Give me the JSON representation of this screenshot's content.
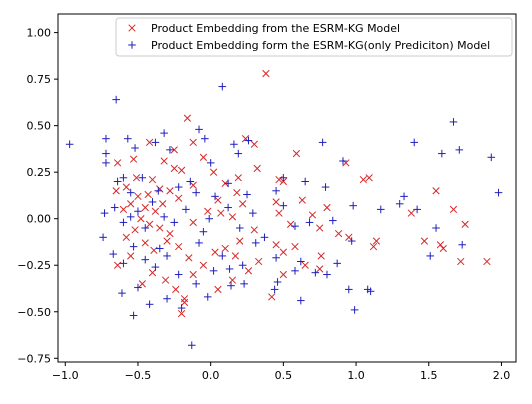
{
  "chart_data": {
    "type": "scatter",
    "xlim": [
      -1.05,
      2.1
    ],
    "ylim": [
      -0.77,
      1.1
    ],
    "xticks": [
      {
        "v": -1.0,
        "label": "−1.0"
      },
      {
        "v": -0.5,
        "label": "−0.5"
      },
      {
        "v": 0.0,
        "label": "0.0"
      },
      {
        "v": 0.5,
        "label": "0.5"
      },
      {
        "v": 1.0,
        "label": "1.0"
      },
      {
        "v": 1.5,
        "label": "1.5"
      },
      {
        "v": 2.0,
        "label": "2.0"
      }
    ],
    "yticks": [
      {
        "v": -0.75,
        "label": "−0.75"
      },
      {
        "v": -0.5,
        "label": "−0.50"
      },
      {
        "v": -0.25,
        "label": "−0.25"
      },
      {
        "v": 0.0,
        "label": "0.00"
      },
      {
        "v": 0.25,
        "label": "0.25"
      },
      {
        "v": 0.5,
        "label": "0.50"
      },
      {
        "v": 0.75,
        "label": "0.75"
      },
      {
        "v": 1.0,
        "label": "1.00"
      }
    ],
    "grid": false,
    "legend_position": "top-right",
    "series": [
      {
        "name": "Product Embedding from the ESRM-KG Model",
        "marker": "x",
        "color": "#d62728",
        "points": [
          [
            0.38,
            0.78
          ],
          [
            -0.16,
            0.54
          ],
          [
            0.24,
            0.43
          ],
          [
            0.3,
            0.4
          ],
          [
            -0.42,
            0.41
          ],
          [
            -0.12,
            0.41
          ],
          [
            -0.25,
            0.37
          ],
          [
            -0.05,
            0.33
          ],
          [
            -0.53,
            0.32
          ],
          [
            -0.32,
            0.31
          ],
          [
            -0.64,
            0.3
          ],
          [
            -0.25,
            0.27
          ],
          [
            -0.2,
            0.26
          ],
          [
            0.02,
            0.25
          ],
          [
            0.19,
            0.22
          ],
          [
            0.32,
            0.27
          ],
          [
            0.59,
            0.35
          ],
          [
            0.93,
            0.3
          ],
          [
            -0.51,
            0.22
          ],
          [
            -0.4,
            0.21
          ],
          [
            -0.35,
            0.16
          ],
          [
            -0.12,
            0.18
          ],
          [
            0.1,
            0.19
          ],
          [
            -0.58,
            0.17
          ],
          [
            -0.65,
            0.15
          ],
          [
            -0.43,
            0.13
          ],
          [
            -0.28,
            0.15
          ],
          [
            -0.22,
            0.11
          ],
          [
            -0.33,
            0.08
          ],
          [
            -0.45,
            0.06
          ],
          [
            -0.55,
            0.08
          ],
          [
            -0.6,
            0.05
          ],
          [
            -0.5,
            0.12
          ],
          [
            -0.38,
            0.04
          ],
          [
            0.05,
            0.1
          ],
          [
            0.18,
            0.14
          ],
          [
            0.47,
            0.21
          ],
          [
            0.5,
            0.2
          ],
          [
            1.05,
            0.21
          ],
          [
            1.09,
            0.22
          ],
          [
            1.55,
            0.15
          ],
          [
            1.67,
            0.05
          ],
          [
            1.75,
            -0.03
          ],
          [
            -0.48,
            0.0
          ],
          [
            -0.42,
            -0.03
          ],
          [
            -0.52,
            -0.06
          ],
          [
            -0.58,
            -0.1
          ],
          [
            -0.35,
            -0.05
          ],
          [
            -0.28,
            -0.08
          ],
          [
            -0.12,
            -0.02
          ],
          [
            -0.02,
            0.04
          ],
          [
            0.07,
            0.03
          ],
          [
            0.15,
            0.01
          ],
          [
            0.22,
            0.08
          ],
          [
            0.3,
            -0.06
          ],
          [
            0.45,
            0.09
          ],
          [
            0.47,
            0.03
          ],
          [
            0.55,
            -0.03
          ],
          [
            0.63,
            0.1
          ],
          [
            0.7,
            0.02
          ],
          [
            0.75,
            -0.05
          ],
          [
            0.8,
            0.06
          ],
          [
            0.88,
            -0.08
          ],
          [
            0.95,
            -0.1
          ],
          [
            1.12,
            -0.15
          ],
          [
            1.14,
            -0.12
          ],
          [
            1.38,
            0.03
          ],
          [
            1.47,
            -0.12
          ],
          [
            1.58,
            -0.14
          ],
          [
            1.6,
            -0.16
          ],
          [
            1.72,
            -0.23
          ],
          [
            1.9,
            -0.23
          ],
          [
            -0.64,
            -0.25
          ],
          [
            -0.55,
            -0.2
          ],
          [
            -0.45,
            -0.13
          ],
          [
            -0.39,
            -0.17
          ],
          [
            -0.3,
            -0.12
          ],
          [
            -0.22,
            -0.15
          ],
          [
            -0.15,
            -0.21
          ],
          [
            -0.05,
            -0.25
          ],
          [
            0.03,
            -0.18
          ],
          [
            0.1,
            -0.16
          ],
          [
            0.17,
            -0.2
          ],
          [
            0.2,
            -0.12
          ],
          [
            0.26,
            -0.28
          ],
          [
            0.33,
            -0.23
          ],
          [
            0.45,
            -0.14
          ],
          [
            0.5,
            -0.18
          ],
          [
            0.58,
            -0.15
          ],
          [
            0.65,
            -0.25
          ],
          [
            0.75,
            -0.27
          ],
          [
            0.76,
            -0.2
          ],
          [
            -0.4,
            -0.29
          ],
          [
            -0.31,
            -0.33
          ],
          [
            -0.24,
            -0.38
          ],
          [
            -0.18,
            -0.43
          ],
          [
            -0.18,
            -0.45
          ],
          [
            -0.2,
            -0.51
          ],
          [
            0.05,
            -0.38
          ],
          [
            0.15,
            -0.33
          ],
          [
            0.42,
            -0.42
          ],
          [
            0.5,
            -0.3
          ],
          [
            -0.12,
            -0.3
          ],
          [
            -0.47,
            -0.35
          ]
        ]
      },
      {
        "name": "Product Embedding form the ESRM-KG(only Prediciton) Model",
        "marker": "+",
        "color": "#1f1fbf",
        "points": [
          [
            -0.97,
            0.4
          ],
          [
            -0.65,
            0.64
          ],
          [
            -0.72,
            0.43
          ],
          [
            -0.72,
            0.35
          ],
          [
            -0.57,
            0.43
          ],
          [
            -0.52,
            0.38
          ],
          [
            -0.38,
            0.41
          ],
          [
            -0.32,
            0.46
          ],
          [
            -0.08,
            0.48
          ],
          [
            0.08,
            0.71
          ],
          [
            -0.28,
            0.37
          ],
          [
            0.0,
            0.3
          ],
          [
            -0.04,
            0.43
          ],
          [
            0.16,
            0.4
          ],
          [
            0.19,
            0.35
          ],
          [
            0.26,
            0.42
          ],
          [
            0.77,
            0.41
          ],
          [
            1.4,
            0.41
          ],
          [
            1.59,
            0.35
          ],
          [
            1.67,
            0.52
          ],
          [
            1.71,
            0.37
          ],
          [
            1.93,
            0.33
          ],
          [
            1.98,
            0.14
          ],
          [
            1.42,
            0.05
          ],
          [
            1.3,
            0.08
          ],
          [
            1.33,
            0.12
          ],
          [
            -0.72,
            0.3
          ],
          [
            -0.64,
            0.2
          ],
          [
            -0.6,
            0.22
          ],
          [
            -0.55,
            0.14
          ],
          [
            -0.47,
            0.22
          ],
          [
            -0.36,
            0.15
          ],
          [
            -0.22,
            0.17
          ],
          [
            -0.14,
            0.2
          ],
          [
            -0.1,
            0.14
          ],
          [
            0.03,
            0.12
          ],
          [
            0.12,
            0.19
          ],
          [
            0.25,
            0.13
          ],
          [
            0.45,
            0.15
          ],
          [
            0.5,
            0.22
          ],
          [
            0.65,
            0.2
          ],
          [
            0.79,
            0.17
          ],
          [
            0.91,
            0.31
          ],
          [
            -0.73,
            0.03
          ],
          [
            -0.66,
            0.06
          ],
          [
            -0.6,
            -0.02
          ],
          [
            -0.55,
            0.01
          ],
          [
            -0.5,
            0.04
          ],
          [
            -0.45,
            -0.05
          ],
          [
            -0.4,
            0.09
          ],
          [
            -0.32,
            0.01
          ],
          [
            -0.25,
            -0.02
          ],
          [
            -0.17,
            0.05
          ],
          [
            -0.05,
            -0.07
          ],
          [
            -0.01,
            0.0
          ],
          [
            0.12,
            0.06
          ],
          [
            0.2,
            -0.05
          ],
          [
            0.29,
            0.03
          ],
          [
            0.37,
            -0.1
          ],
          [
            0.5,
            0.07
          ],
          [
            0.58,
            -0.04
          ],
          [
            0.68,
            -0.02
          ],
          [
            0.84,
            -0.01
          ],
          [
            0.98,
            0.07
          ],
          [
            0.97,
            -0.12
          ],
          [
            1.17,
            0.05
          ],
          [
            1.51,
            -0.2
          ],
          [
            1.55,
            -0.05
          ],
          [
            1.73,
            -0.14
          ],
          [
            -0.74,
            -0.1
          ],
          [
            -0.67,
            -0.19
          ],
          [
            -0.6,
            -0.24
          ],
          [
            -0.53,
            -0.15
          ],
          [
            -0.45,
            -0.22
          ],
          [
            -0.38,
            -0.26
          ],
          [
            -0.3,
            -0.2
          ],
          [
            -0.22,
            -0.3
          ],
          [
            -0.08,
            -0.13
          ],
          [
            0.02,
            -0.28
          ],
          [
            0.08,
            -0.2
          ],
          [
            0.13,
            -0.27
          ],
          [
            0.22,
            -0.25
          ],
          [
            0.31,
            -0.13
          ],
          [
            0.45,
            -0.21
          ],
          [
            0.58,
            -0.28
          ],
          [
            0.62,
            -0.23
          ],
          [
            0.72,
            -0.29
          ],
          [
            0.8,
            -0.3
          ],
          [
            0.87,
            -0.24
          ],
          [
            -0.61,
            -0.4
          ],
          [
            -0.5,
            -0.37
          ],
          [
            -0.42,
            -0.46
          ],
          [
            -0.3,
            -0.43
          ],
          [
            -0.1,
            -0.35
          ],
          [
            -0.02,
            -0.42
          ],
          [
            0.14,
            -0.36
          ],
          [
            0.23,
            -0.35
          ],
          [
            0.44,
            -0.38
          ],
          [
            0.46,
            -0.34
          ],
          [
            0.62,
            -0.44
          ],
          [
            0.95,
            -0.38
          ],
          [
            1.08,
            -0.38
          ],
          [
            1.1,
            -0.39
          ],
          [
            0.99,
            -0.49
          ],
          [
            -0.13,
            -0.68
          ],
          [
            -0.2,
            -0.48
          ],
          [
            -0.53,
            -0.52
          ],
          [
            -0.35,
            -0.16
          ]
        ]
      }
    ]
  }
}
